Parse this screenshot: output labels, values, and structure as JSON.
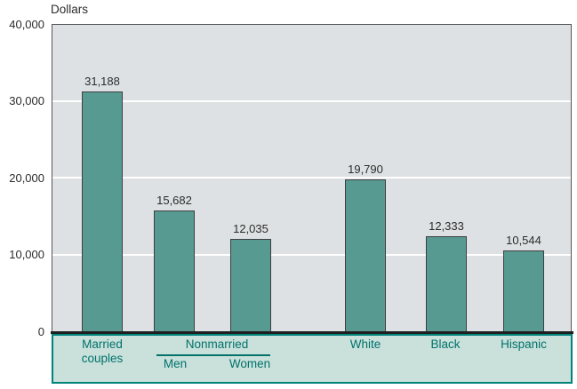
{
  "chart_data": {
    "type": "bar",
    "title": "",
    "ylabel": "Dollars",
    "categories": [
      "Married couples",
      "Nonmarried Men",
      "Nonmarried Women",
      "White",
      "Black",
      "Hispanic"
    ],
    "values": [
      31188,
      15682,
      12035,
      19790,
      12333,
      10544
    ],
    "value_labels": [
      "31,188",
      "15,682",
      "12,035",
      "19,790",
      "12,333",
      "10,544"
    ],
    "ylim": [
      0,
      40000
    ],
    "yticks": [
      {
        "value": 40000,
        "label": "40,000"
      },
      {
        "value": 30000,
        "label": "30,000"
      },
      {
        "value": 20000,
        "label": "20,000"
      },
      {
        "value": 10000,
        "label": "10,000"
      },
      {
        "value": 0,
        "label": "0"
      }
    ],
    "grid": true,
    "legend_position": "none",
    "colors": {
      "bar_fill": "#569a92",
      "bar_border": "#3e3f41",
      "plot_bg": "#dee1e3",
      "plot_border": "#54565a",
      "gridline": "#ffffff",
      "axis_line": "#1f1f1f",
      "label_text": "#2b2b2b",
      "panel_bg": "#c9e0db",
      "panel_border": "#00837c",
      "panel_text": "#00726b"
    }
  },
  "x_axis_panel": {
    "married_line1": "Married",
    "married_line2": "couples",
    "nonmarried_group_label": "Nonmarried",
    "men": "Men",
    "women": "Women",
    "white": "White",
    "black": "Black",
    "hispanic": "Hispanic"
  }
}
